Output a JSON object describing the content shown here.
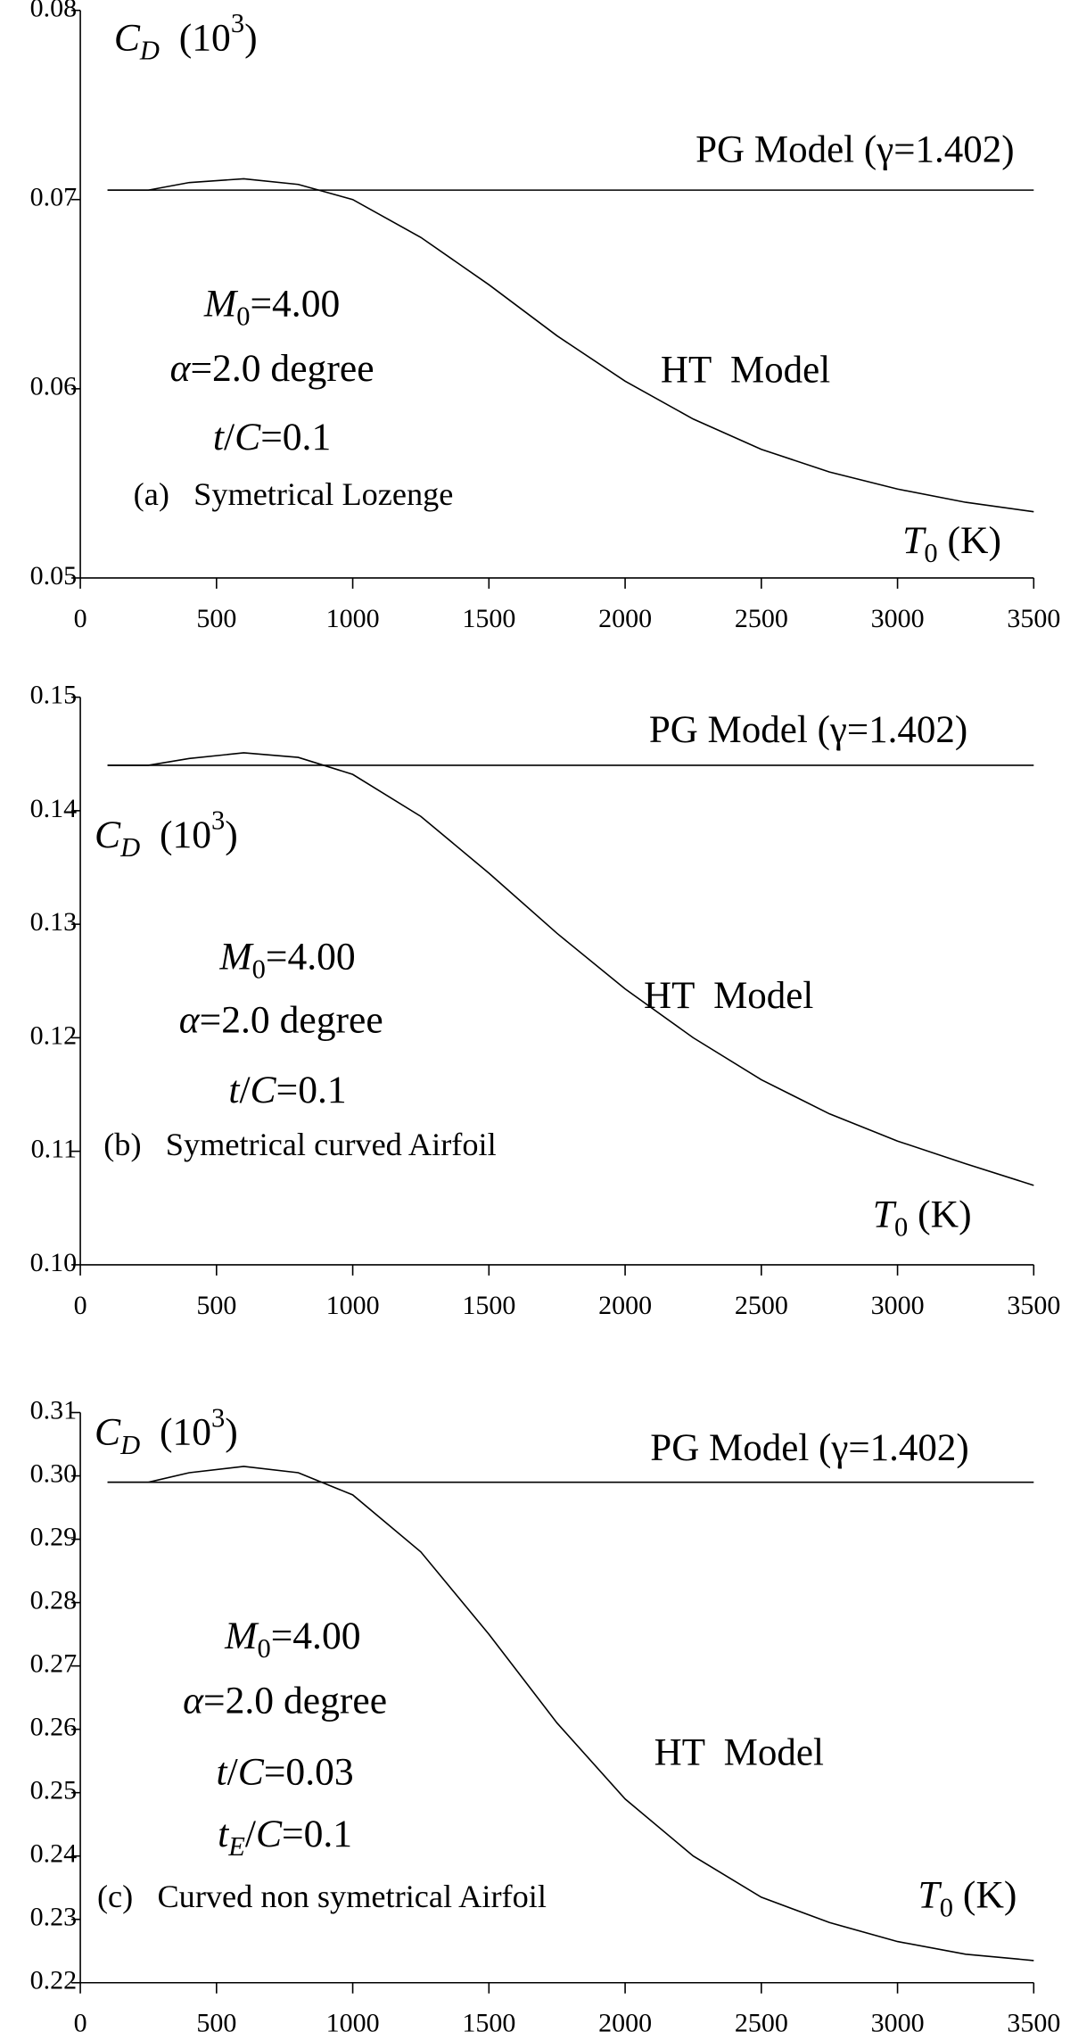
{
  "chart_data": [
    {
      "type": "line",
      "x": [
        100,
        250,
        400,
        600,
        800,
        1000,
        1250,
        1500,
        1750,
        2000,
        2250,
        2500,
        2750,
        3000,
        3250,
        3500
      ],
      "series": [
        {
          "name": "PG Model (γ=1.402)",
          "color": "#000000",
          "values": [
            0.0705,
            0.0705,
            0.0705,
            0.0705,
            0.0705,
            0.0705,
            0.0705,
            0.0705,
            0.0705,
            0.0705,
            0.0705,
            0.0705,
            0.0705,
            0.0705,
            0.0705,
            0.0705
          ]
        },
        {
          "name": "HT  Model",
          "color": "#000000",
          "values": [
            0.0705,
            0.0705,
            0.0709,
            0.0711,
            0.0708,
            0.07,
            0.068,
            0.0655,
            0.0628,
            0.0604,
            0.0584,
            0.0568,
            0.0556,
            0.0547,
            0.054,
            0.0535
          ]
        }
      ],
      "xlim": [
        0,
        3500
      ],
      "xticks": [
        0,
        500,
        1000,
        1500,
        2000,
        2500,
        3000,
        3500
      ],
      "ylim": [
        0.05,
        0.08
      ],
      "yticks": [
        0.05,
        0.06,
        0.07,
        0.08
      ],
      "annotations": [
        [
          {
            "text": "C",
            "style": "i"
          },
          {
            "text": "D",
            "style": "isub"
          },
          {
            "text": "  (10"
          },
          {
            "text": "3",
            "style": "sup"
          },
          {
            "text": ")"
          }
        ],
        [
          {
            "text": "M",
            "style": "i"
          },
          {
            "text": "0",
            "style": "sub"
          },
          {
            "text": "=4.00"
          }
        ],
        [
          {
            "text": "α",
            "style": "i"
          },
          {
            "text": "=2.0 degree"
          }
        ],
        [
          {
            "text": "t",
            "style": "i"
          },
          {
            "text": "/"
          },
          {
            "text": "C",
            "style": "i"
          },
          {
            "text": "=0.1"
          }
        ],
        [
          {
            "text": "(a)   Symetrical Lozenge"
          }
        ],
        [
          {
            "text": "T",
            "style": "i"
          },
          {
            "text": "0",
            "style": "sub"
          },
          {
            "text": " (K)"
          }
        ]
      ]
    },
    {
      "type": "line",
      "x": [
        100,
        250,
        400,
        600,
        800,
        1000,
        1250,
        1500,
        1750,
        2000,
        2250,
        2500,
        2750,
        3000,
        3250,
        3500
      ],
      "series": [
        {
          "name": "PG Model (γ=1.402)",
          "color": "#000000",
          "values": [
            0.144,
            0.144,
            0.144,
            0.144,
            0.144,
            0.144,
            0.144,
            0.144,
            0.144,
            0.144,
            0.144,
            0.144,
            0.144,
            0.144,
            0.144,
            0.144
          ]
        },
        {
          "name": "HT  Model",
          "color": "#000000",
          "values": [
            0.144,
            0.144,
            0.1446,
            0.1451,
            0.1447,
            0.1432,
            0.1395,
            0.1345,
            0.1292,
            0.1243,
            0.12,
            0.1163,
            0.1133,
            0.1109,
            0.1089,
            0.107
          ]
        }
      ],
      "xlim": [
        0,
        3500
      ],
      "xticks": [
        0,
        500,
        1000,
        1500,
        2000,
        2500,
        3000,
        3500
      ],
      "ylim": [
        0.1,
        0.15
      ],
      "yticks": [
        {
          "value": 0.1,
          "label": "0.10"
        },
        0.11,
        0.12,
        0.13,
        0.14,
        0.15
      ],
      "annotations": [
        [
          {
            "text": "C",
            "style": "i"
          },
          {
            "text": "D",
            "style": "isub"
          },
          {
            "text": "  (10"
          },
          {
            "text": "3",
            "style": "sup"
          },
          {
            "text": ")"
          }
        ],
        [
          {
            "text": "M",
            "style": "i"
          },
          {
            "text": "0",
            "style": "sub"
          },
          {
            "text": "=4.00"
          }
        ],
        [
          {
            "text": "α",
            "style": "i"
          },
          {
            "text": "=2.0 degree"
          }
        ],
        [
          {
            "text": "t",
            "style": "i"
          },
          {
            "text": "/"
          },
          {
            "text": "C",
            "style": "i"
          },
          {
            "text": "=0.1"
          }
        ],
        [
          {
            "text": "(b)   Symetrical curved Airfoil"
          }
        ],
        [
          {
            "text": "T",
            "style": "i"
          },
          {
            "text": "0",
            "style": "sub"
          },
          {
            "text": " (K)"
          }
        ]
      ]
    },
    {
      "type": "line",
      "x": [
        100,
        250,
        400,
        600,
        800,
        1000,
        1250,
        1500,
        1750,
        2000,
        2250,
        2500,
        2750,
        3000,
        3250,
        3500
      ],
      "series": [
        {
          "name": "PG Model (γ=1.402)",
          "color": "#000000",
          "values": [
            0.299,
            0.299,
            0.299,
            0.299,
            0.299,
            0.299,
            0.299,
            0.299,
            0.299,
            0.299,
            0.299,
            0.299,
            0.299,
            0.299,
            0.299,
            0.299
          ]
        },
        {
          "name": "HT  Model",
          "color": "#000000",
          "values": [
            0.299,
            0.299,
            0.3005,
            0.3015,
            0.3005,
            0.297,
            0.288,
            0.275,
            0.261,
            0.249,
            0.24,
            0.2335,
            0.2295,
            0.2265,
            0.2245,
            0.2235
          ]
        }
      ],
      "xlim": [
        0,
        3500
      ],
      "xticks": [
        0,
        500,
        1000,
        1500,
        2000,
        2500,
        3000,
        3500
      ],
      "ylim": [
        0.22,
        0.31
      ],
      "yticks": [
        0.22,
        0.23,
        0.24,
        0.25,
        0.26,
        0.27,
        0.28,
        0.29,
        {
          "value": 0.3,
          "label": "0.30"
        },
        0.31
      ],
      "annotations": [
        [
          {
            "text": "C",
            "style": "i"
          },
          {
            "text": "D",
            "style": "isub"
          },
          {
            "text": "  (10"
          },
          {
            "text": "3",
            "style": "sup"
          },
          {
            "text": ")"
          }
        ],
        [
          {
            "text": "M",
            "style": "i"
          },
          {
            "text": "0",
            "style": "sub"
          },
          {
            "text": "=4.00"
          }
        ],
        [
          {
            "text": "α",
            "style": "i"
          },
          {
            "text": "=2.0 degree"
          }
        ],
        [
          {
            "text": "t",
            "style": "i"
          },
          {
            "text": "/"
          },
          {
            "text": "C",
            "style": "i"
          },
          {
            "text": "=0.03"
          }
        ],
        [
          {
            "text": "t",
            "style": "i"
          },
          {
            "text": "E",
            "style": "isub"
          },
          {
            "text": "/"
          },
          {
            "text": "C",
            "style": "i"
          },
          {
            "text": "=0.1"
          }
        ],
        [
          {
            "text": "(c)   Curved non symetrical Airfoil"
          }
        ],
        [
          {
            "text": "T",
            "style": "i"
          },
          {
            "text": "0",
            "style": "sub"
          },
          {
            "text": " (K)"
          }
        ]
      ]
    }
  ]
}
